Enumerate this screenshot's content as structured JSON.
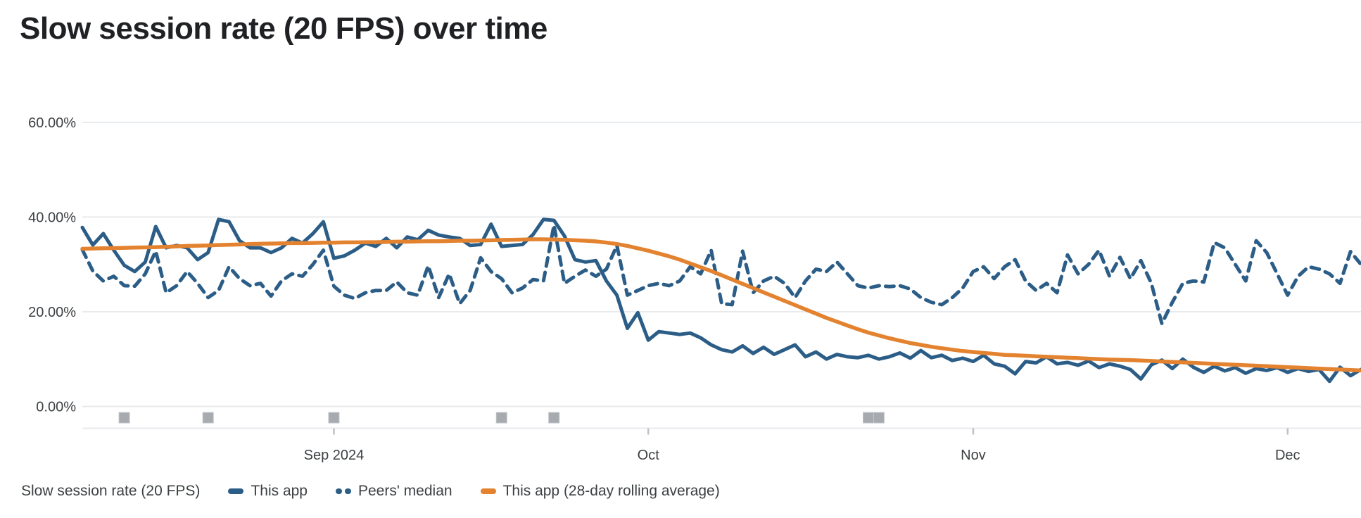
{
  "title": "Slow session rate (20 FPS) over time",
  "legend": {
    "metric_label": "Slow session rate (20 FPS)",
    "items": [
      {
        "label": "This app",
        "style": "solid",
        "color": "#2b5d87"
      },
      {
        "label": "Peers' median",
        "style": "dashed",
        "color": "#2b5d87"
      },
      {
        "label": "This app (28-day rolling average)",
        "style": "solid",
        "color": "#e3822f"
      }
    ]
  },
  "colors": {
    "grid": "#e8eaed",
    "axis_text": "#3c4043",
    "title_text": "#202124",
    "release_marker_fill": "#a7aaae",
    "release_marker_border": "#c2c5c8",
    "month_tick": "#bdc1c6"
  },
  "chart_data": {
    "type": "line",
    "title": "Slow session rate (20 FPS) over time",
    "ylabel": "Slow session rate (20 FPS)",
    "ylim": [
      0,
      60
    ],
    "grid": "horizontal",
    "legend_position": "bottom",
    "y_ticks": [
      {
        "label": "0.00%",
        "value": 0
      },
      {
        "label": "20.00%",
        "value": 20
      },
      {
        "label": "40.00%",
        "value": 40
      },
      {
        "label": "60.00%",
        "value": 60
      }
    ],
    "x_ticks": [
      {
        "label": "Sep 2024",
        "day": 24
      },
      {
        "label": "Oct",
        "day": 54
      },
      {
        "label": "Nov",
        "day": 85
      },
      {
        "label": "Dec",
        "day": 115
      }
    ],
    "release_marker_days": [
      4,
      12,
      24,
      40,
      45,
      75,
      76
    ],
    "series": [
      {
        "name": "Peers' median",
        "style": "dashed",
        "color": "#2b5d87",
        "values": [
          33.1,
          28.6,
          26.5,
          27.5,
          25.5,
          25.4,
          28.0,
          32.8,
          24.0,
          25.5,
          28.5,
          26.0,
          23.0,
          24.5,
          29.5,
          27.0,
          25.5,
          26.0,
          23.3,
          26.5,
          28.0,
          27.5,
          30.0,
          33.0,
          25.4,
          23.5,
          22.8,
          24.0,
          24.5,
          24.5,
          26.3,
          24.0,
          23.5,
          29.7,
          23.0,
          28.0,
          21.7,
          24.5,
          31.4,
          28.5,
          27.0,
          24.0,
          25.0,
          26.8,
          26.5,
          38.3,
          26.0,
          27.5,
          28.8,
          27.5,
          29.0,
          34.0,
          23.5,
          24.5,
          25.5,
          26.0,
          25.5,
          26.5,
          29.5,
          28.0,
          33.0,
          21.7,
          21.5,
          32.8,
          24.0,
          26.5,
          27.5,
          26.0,
          23.0,
          26.5,
          29.0,
          28.5,
          30.5,
          28.0,
          25.5,
          25.0,
          25.5,
          25.3,
          25.5,
          24.8,
          23.0,
          22.0,
          21.5,
          23.0,
          25.0,
          28.5,
          29.5,
          27.0,
          29.5,
          31.0,
          26.5,
          24.5,
          26.0,
          24.0,
          32.0,
          28.0,
          30.0,
          33.0,
          27.5,
          31.5,
          27.0,
          30.8,
          26.0,
          17.5,
          22.0,
          26.0,
          26.5,
          26.3,
          34.6,
          33.5,
          30.0,
          26.5,
          35.0,
          32.5,
          28.0,
          23.5,
          27.5,
          29.5,
          29.0,
          28.0,
          26.0,
          32.7,
          30.0
        ]
      },
      {
        "name": "This app",
        "style": "solid",
        "color": "#2b5d87",
        "values": [
          37.8,
          34.1,
          36.5,
          33.0,
          29.8,
          28.5,
          30.5,
          38.0,
          33.5,
          34.0,
          33.5,
          31.0,
          32.5,
          39.5,
          39.0,
          35.0,
          33.5,
          33.5,
          32.5,
          33.5,
          35.5,
          34.5,
          36.5,
          39.0,
          31.3,
          31.8,
          33.0,
          34.5,
          33.8,
          35.5,
          33.5,
          35.8,
          35.2,
          37.2,
          36.2,
          35.8,
          35.5,
          34.0,
          34.2,
          38.5,
          33.8,
          34.0,
          34.2,
          36.3,
          39.5,
          39.3,
          36.0,
          31.0,
          30.5,
          30.8,
          26.5,
          23.5,
          16.5,
          19.8,
          14.0,
          15.8,
          15.5,
          15.2,
          15.5,
          14.5,
          13.0,
          12.0,
          11.5,
          12.8,
          11.2,
          12.5,
          11.0,
          12.0,
          13.0,
          10.5,
          11.5,
          10.0,
          11.0,
          10.5,
          10.3,
          10.8,
          10.0,
          10.5,
          11.3,
          10.2,
          11.8,
          10.3,
          10.8,
          9.7,
          10.2,
          9.5,
          10.8,
          9.0,
          8.5,
          6.9,
          9.5,
          9.2,
          10.5,
          9.0,
          9.3,
          8.7,
          9.6,
          8.2,
          9.0,
          8.5,
          7.8,
          5.8,
          8.8,
          9.8,
          8.0,
          10.0,
          8.3,
          7.2,
          8.5,
          7.5,
          8.2,
          7.0,
          8.0,
          7.6,
          8.2,
          7.2,
          8.0,
          7.4,
          7.8,
          5.3,
          8.3,
          6.5,
          7.8
        ]
      },
      {
        "name": "This app (28-day rolling average)",
        "style": "solid",
        "color": "#e3822f",
        "values": [
          33.3,
          33.35,
          33.4,
          33.45,
          33.5,
          33.55,
          33.6,
          33.65,
          33.7,
          33.8,
          33.9,
          33.95,
          34.0,
          34.1,
          34.15,
          34.2,
          34.3,
          34.35,
          34.4,
          34.45,
          34.5,
          34.5,
          34.55,
          34.6,
          34.6,
          34.65,
          34.65,
          34.7,
          34.7,
          34.75,
          34.8,
          34.8,
          34.85,
          34.9,
          34.9,
          34.95,
          35.0,
          35.0,
          35.05,
          35.1,
          35.15,
          35.2,
          35.25,
          35.3,
          35.3,
          35.25,
          35.2,
          35.1,
          35.0,
          34.85,
          34.6,
          34.3,
          33.9,
          33.4,
          32.9,
          32.3,
          31.7,
          31.0,
          30.2,
          29.4,
          28.6,
          27.7,
          26.8,
          25.9,
          25.0,
          24.1,
          23.2,
          22.3,
          21.4,
          20.5,
          19.6,
          18.7,
          17.9,
          17.1,
          16.3,
          15.6,
          15.0,
          14.4,
          13.9,
          13.4,
          13.0,
          12.6,
          12.3,
          12.0,
          11.7,
          11.5,
          11.3,
          11.1,
          10.9,
          10.8,
          10.7,
          10.6,
          10.5,
          10.4,
          10.3,
          10.2,
          10.1,
          10.0,
          9.9,
          9.85,
          9.8,
          9.7,
          9.6,
          9.5,
          9.4,
          9.3,
          9.2,
          9.1,
          9.0,
          8.9,
          8.8,
          8.7,
          8.6,
          8.5,
          8.4,
          8.3,
          8.2,
          8.1,
          8.0,
          7.9,
          7.8,
          7.7,
          7.6
        ]
      }
    ]
  }
}
